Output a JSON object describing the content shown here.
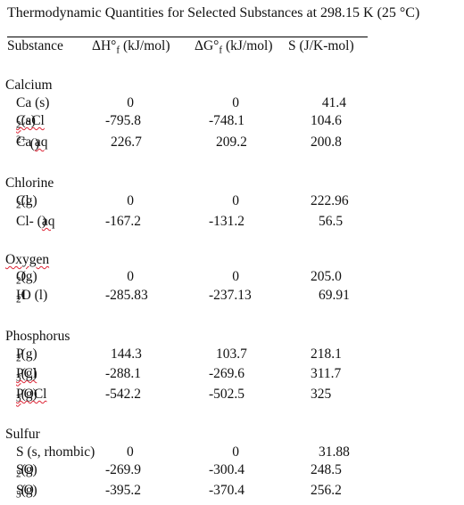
{
  "title": "Thermodynamic Quantities for Selected Substances at 298.15 K (25 °C)",
  "headers": {
    "substance": "Substance",
    "dh_prefix": "ΔH°",
    "dh_sub": "f",
    "dh_unit": " (kJ/mol)",
    "dg_prefix": "ΔG°",
    "dg_sub": "f",
    "dg_unit": " (kJ/mol)",
    "s": "S (J/K-mol)"
  },
  "groups": [
    {
      "name": "Calcium",
      "rows": [
        {
          "sub": [
            "Ca (s)"
          ],
          "dh": "0",
          "dg": "0",
          "s": "41.4"
        },
        {
          "sub": [
            "CaCl",
            "2",
            " (s)"
          ],
          "dh": "-795.8",
          "dg": "-748.1",
          "s": "104.6"
        },
        {
          "sub": [
            "Ca",
            "2+",
            " (aq)"
          ],
          "dh": "226.7",
          "dg": "209.2",
          "s": "200.8"
        }
      ]
    },
    {
      "name": "Chlorine",
      "rows": [
        {
          "sub": [
            "Cl",
            "2",
            " (g)"
          ],
          "dh": "0",
          "dg": "0",
          "s": "222.96"
        },
        {
          "sub": [
            "Cl- (aq)"
          ],
          "dh": "-167.2",
          "dg": "-131.2",
          "s": "56.5"
        }
      ]
    },
    {
      "name": "Oxygen",
      "rows": [
        {
          "sub": [
            "O",
            "2",
            " (g)"
          ],
          "dh": "0",
          "dg": "0",
          "s": "205.0"
        },
        {
          "sub": [
            "H",
            "2",
            "O (l)"
          ],
          "dh": "-285.83",
          "dg": "-237.13",
          "s": "69.91"
        }
      ]
    },
    {
      "name": "Phosphorus",
      "rows": [
        {
          "sub": [
            "P",
            "2",
            " (g)"
          ],
          "dh": "144.3",
          "dg": "103.7",
          "s": "218.1"
        },
        {
          "sub": [
            "PCl",
            "3",
            " (g)"
          ],
          "dh": "-288.1",
          "dg": "-269.6",
          "s": "311.7"
        },
        {
          "sub": [
            "POCl",
            "3",
            " (g)"
          ],
          "dh": "-542.2",
          "dg": "-502.5",
          "s": "325"
        }
      ]
    },
    {
      "name": "Sulfur",
      "rows": [
        {
          "sub": [
            "S (s, rhombic)"
          ],
          "dh": "0",
          "dg": "0",
          "s": "31.88"
        },
        {
          "sub": [
            "SO",
            "2",
            "(g)"
          ],
          "dh": "-269.9",
          "dg": "-300.4",
          "s": "248.5"
        },
        {
          "sub": [
            "SO",
            "3",
            "(g)"
          ],
          "dh": "-395.2",
          "dg": "-370.4",
          "s": "256.2"
        }
      ]
    }
  ]
}
